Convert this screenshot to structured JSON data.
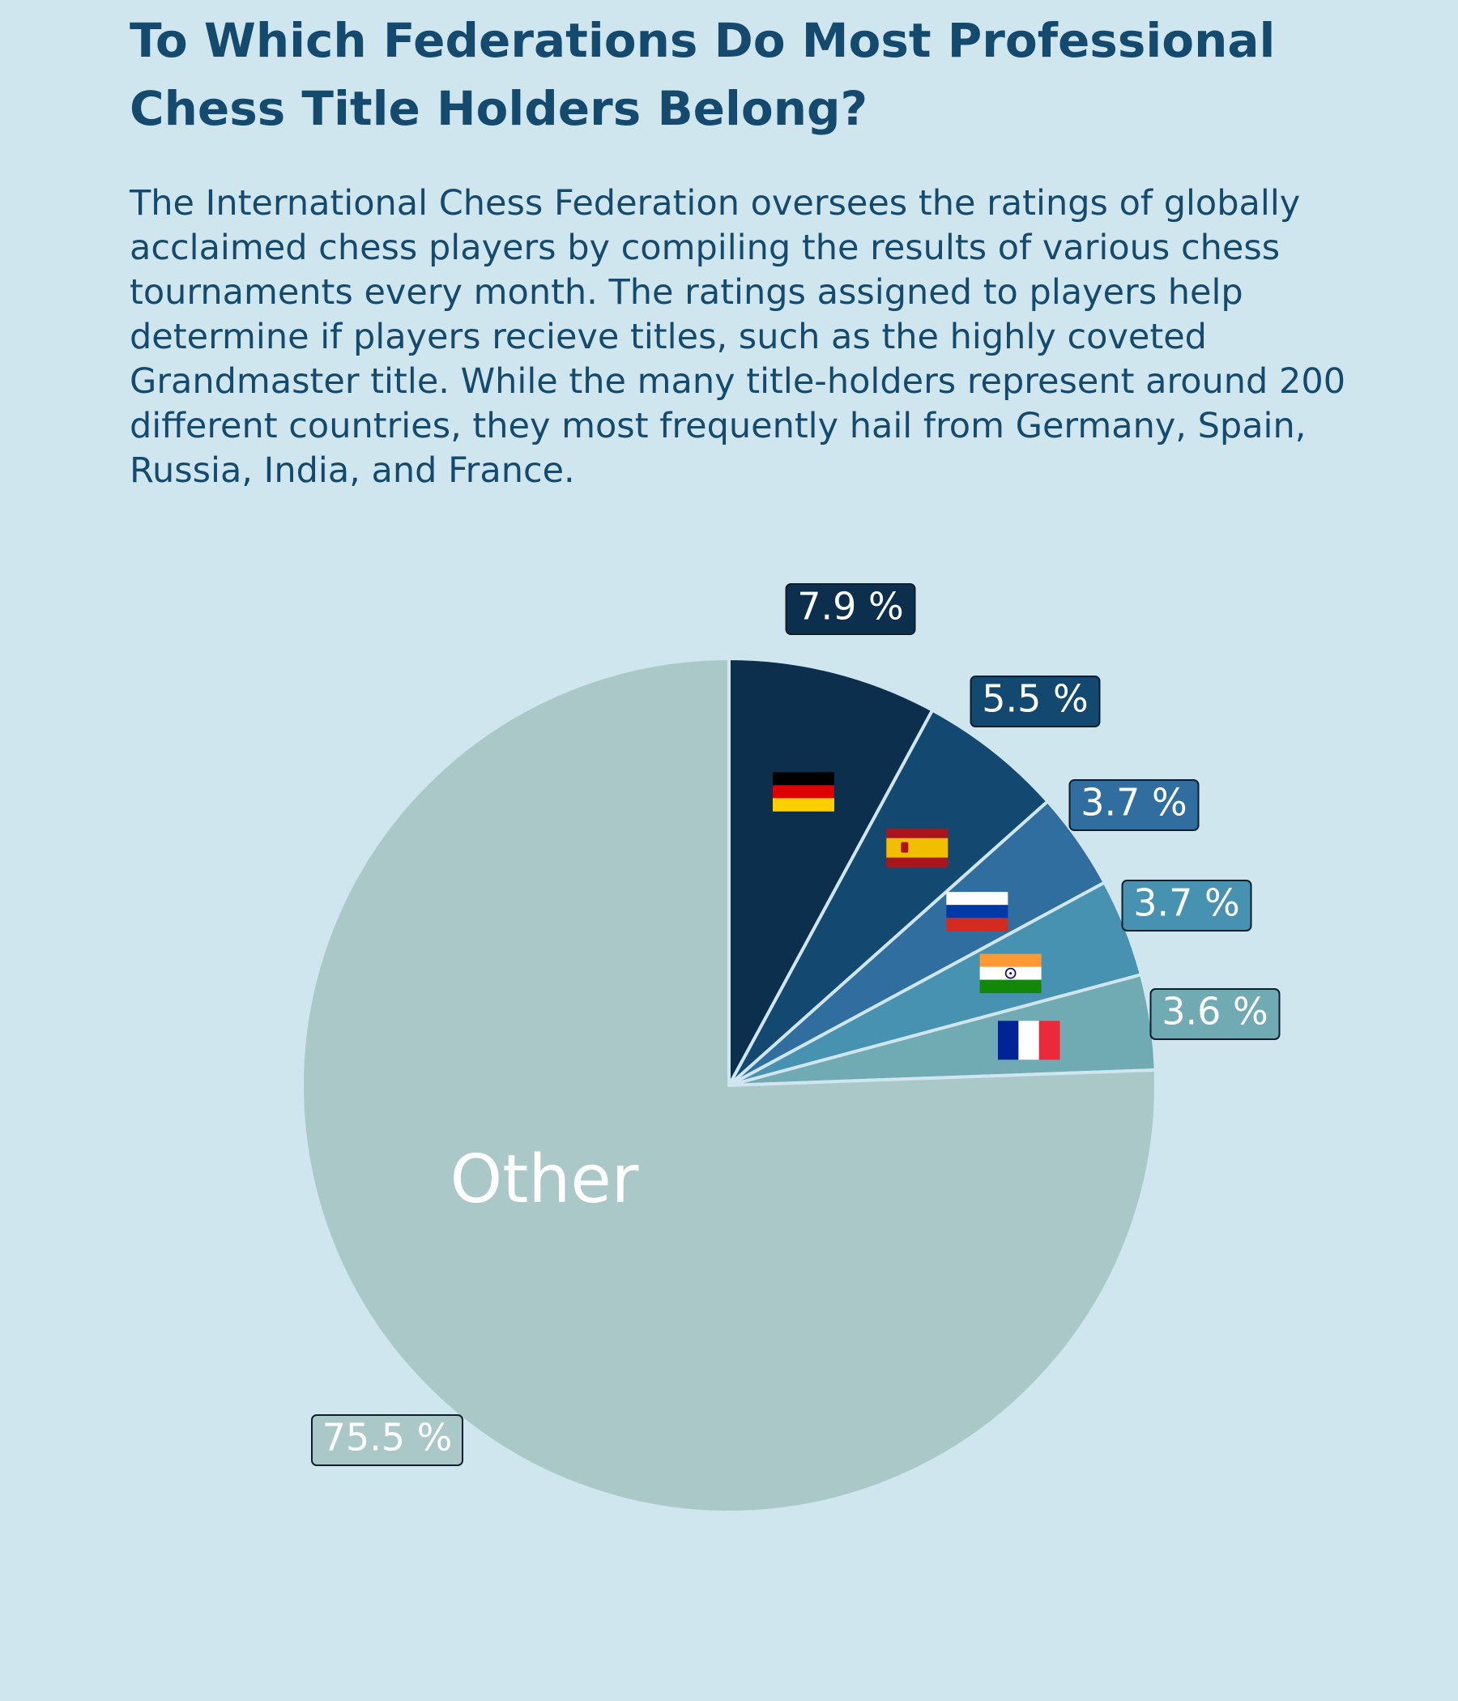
{
  "title": "To Which Federations Do Most Professional Chess Title Holders Belong?",
  "description": "The International Chess Federation oversees the ratings of globally acclaimed chess players by compiling the results of various chess tournaments every month. The ratings assigned to players help determine if players recieve titles, such as the highly coveted Grandmaster title. While the many title-holders represent around 200 different countries, they most frequently hail from Germany, Spain, Russia, India, and France.",
  "colors": {
    "background": "#cfe6ef",
    "text": "#154a6f",
    "slice_edge": "#cfe6ef"
  },
  "chart_data": {
    "type": "pie",
    "title": "To Which Federations Do Most Professional Chess Title Holders Belong?",
    "start_angle": "12 o'clock",
    "direction": "clockwise",
    "slices": [
      {
        "name": "Germany",
        "value": 7.9,
        "label": "7.9 %",
        "color": "#0b2f4d",
        "icon": "germany-flag"
      },
      {
        "name": "Spain",
        "value": 5.5,
        "label": "5.5 %",
        "color": "#134970",
        "icon": "spain-flag"
      },
      {
        "name": "Russia",
        "value": 3.7,
        "label": "3.7 %",
        "color": "#2f6e9e",
        "icon": "russia-flag"
      },
      {
        "name": "India",
        "value": 3.7,
        "label": "3.7 %",
        "color": "#4792b0",
        "icon": "india-flag"
      },
      {
        "name": "France",
        "value": 3.6,
        "label": "3.6 %",
        "color": "#70aab3",
        "icon": "france-flag"
      },
      {
        "name": "Other",
        "value": 75.5,
        "label": "75.5 %",
        "color": "#abc8c9",
        "icon": "",
        "inner_text": "Other"
      }
    ]
  }
}
